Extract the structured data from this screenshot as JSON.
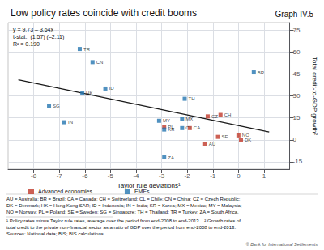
{
  "chart_data": {
    "type": "scatter",
    "title": "Low policy rates coincide with credit booms",
    "subtitle": "Graph IV.5",
    "xlabel": "Taylor rule deviations¹",
    "ylabel": "Total credit-to-GDP growth²",
    "annotations": [
      "y = 9.73 – 3.64x",
      "t-stat:  (1.57) (–2.11)",
      "R² = 0.190"
    ],
    "footnotes": [
      "AU = Australia; BR = Brazil; CA = Canada; CH = Switzerland; CL = Chile; CN = China; CZ = Czech Republic;",
      "DK = Denmark; HK = Hong Kong SAR; ID = Indonesia; IN = India; KR = Korea; MX = Mexico; MY = Malaysia;",
      "NO = Norway; PL = Poland; SE = Sweden; SG = Singapore; TH = Thailand; TR = Turkey; ZA = South Africa.",
      "¹ Policy rates minus Taylor rule rates, average over the period from end-2008 to end-2013.   ² Growth rates of",
      "total credit to the private non-financial sector as a ratio of GDP over the period from end-2008 to end-2013.",
      "Sources: National data; BIS; BIS calculations."
    ],
    "credit": "© Bank for International Settlements",
    "xlim": [
      -9,
      2
    ],
    "ylim": [
      -20,
      80
    ],
    "xticks": [
      -8,
      -7,
      -6,
      -5,
      -4,
      -3,
      -2,
      -1,
      0,
      1
    ],
    "yticks": [
      -15,
      0,
      15,
      30,
      45,
      60,
      75
    ],
    "grid": true,
    "legend": "bottom",
    "series": [
      {
        "name": "Advanced economies",
        "color": "#c0392b",
        "marker": "square",
        "labels": [
          "AU",
          "CA",
          "CH",
          "CZ",
          "DK",
          "NO",
          "PL",
          "SE"
        ],
        "x": [
          -1.3,
          -1.9,
          -0.7,
          -1.2,
          0.1,
          0.0,
          -2.9,
          -0.8
        ],
        "y": [
          -3,
          8,
          17,
          16,
          0,
          3,
          9,
          2
        ]
      },
      {
        "name": "EMEs",
        "color": "#2475b0",
        "marker": "square",
        "labels": [
          "BR",
          "CN",
          "HK",
          "ID",
          "IN",
          "KR",
          "MX",
          "MY",
          "SG",
          "TH",
          "TR",
          "CL",
          "ZA"
        ],
        "x": [
          0.6,
          -5.7,
          -6.1,
          -5.2,
          -6.8,
          -2.9,
          -2.2,
          -3.1,
          -7.4,
          -2.1,
          -6.2,
          -2.2,
          -2.9
        ],
        "y": [
          46,
          53,
          32,
          35,
          12,
          7,
          14,
          13,
          23,
          28,
          62,
          8,
          -12
        ]
      }
    ],
    "regression_line": {
      "type": "line",
      "color": "#1a1a1a",
      "x": [
        -8.6,
        1.2
      ],
      "y": [
        41.034,
        5.362
      ]
    }
  }
}
